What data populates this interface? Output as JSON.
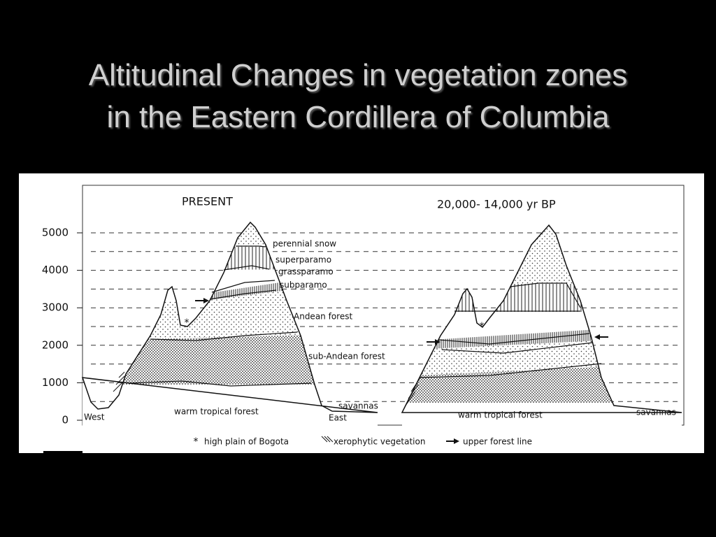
{
  "title_lines": [
    "Altitudinal Changes in vegetation zones",
    "in the Eastern Cordillera of Columbia"
  ],
  "diagram": {
    "altitude_ticks": [
      "0",
      "1000",
      "2000",
      "3000",
      "4000",
      "5000"
    ],
    "panels": [
      {
        "heading": "PRESENT",
        "zone_labels": [
          "perennial snow",
          "superparamo",
          "grassparamo",
          "subparamo",
          "Andean forest",
          "sub-Andean forest",
          "warm tropical forest",
          "savannas"
        ],
        "directions": [
          "West",
          "East"
        ]
      },
      {
        "heading": "20,000- 14,000 yr BP",
        "zone_labels": [
          "warm tropical forest",
          "savannas"
        ]
      }
    ],
    "legend": [
      "high plain of Bogota",
      "xerophytic vegetation",
      "upper forest line"
    ]
  }
}
